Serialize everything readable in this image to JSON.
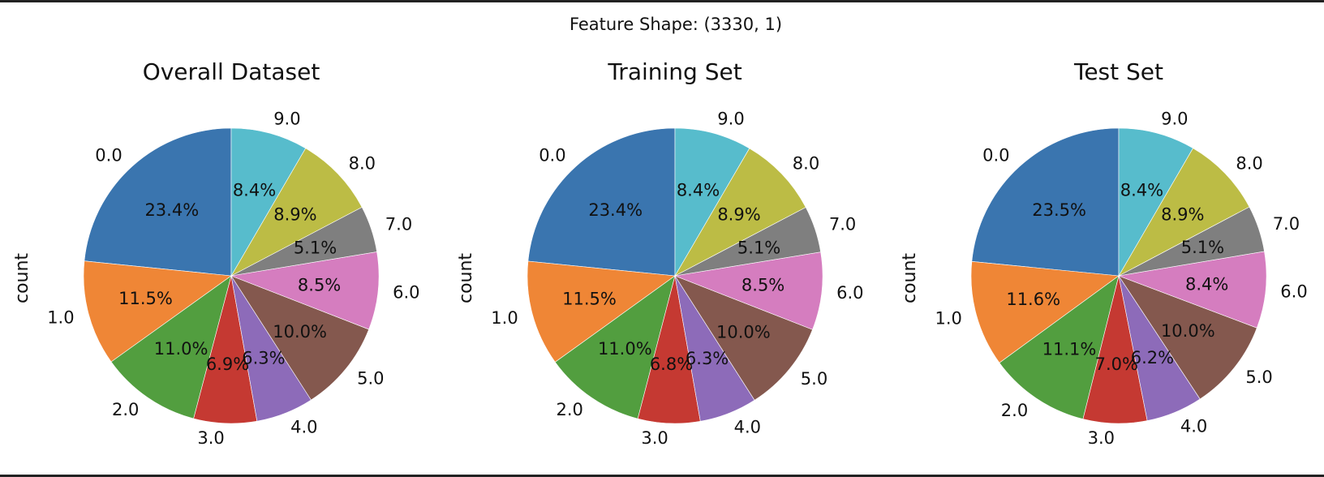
{
  "suptitle": "Feature Shape: (3330, 1)",
  "chart_data": [
    {
      "type": "pie",
      "title": "Overall Dataset",
      "ylabel": "count",
      "labels": [
        "0.0",
        "1.0",
        "2.0",
        "3.0",
        "4.0",
        "5.0",
        "6.0",
        "7.0",
        "8.0",
        "9.0"
      ],
      "values": [
        23.4,
        11.5,
        11.0,
        6.9,
        6.3,
        10.0,
        8.5,
        5.1,
        8.9,
        8.4
      ],
      "pct_labels": [
        "23.4%",
        "11.5%",
        "11.0%",
        "6.9%",
        "6.3%",
        "10.0%",
        "8.5%",
        "5.1%",
        "8.9%",
        "8.4%"
      ],
      "start_angle": 90,
      "direction": "counterclockwise",
      "colors": [
        "#3a75af",
        "#ef8636",
        "#529e3f",
        "#c53932",
        "#8d6bb9",
        "#84584e",
        "#d57dbf",
        "#7f7f7f",
        "#bcbc45",
        "#57bccc"
      ]
    },
    {
      "type": "pie",
      "title": "Training Set",
      "ylabel": "count",
      "labels": [
        "0.0",
        "1.0",
        "2.0",
        "3.0",
        "4.0",
        "5.0",
        "6.0",
        "7.0",
        "8.0",
        "9.0"
      ],
      "values": [
        23.4,
        11.5,
        11.0,
        6.8,
        6.3,
        10.0,
        8.5,
        5.1,
        8.9,
        8.4
      ],
      "pct_labels": [
        "23.4%",
        "11.5%",
        "11.0%",
        "6.8%",
        "6.3%",
        "10.0%",
        "8.5%",
        "5.1%",
        "8.9%",
        "8.4%"
      ],
      "start_angle": 90,
      "direction": "counterclockwise",
      "colors": [
        "#3a75af",
        "#ef8636",
        "#529e3f",
        "#c53932",
        "#8d6bb9",
        "#84584e",
        "#d57dbf",
        "#7f7f7f",
        "#bcbc45",
        "#57bccc"
      ]
    },
    {
      "type": "pie",
      "title": "Test Set",
      "ylabel": "count",
      "labels": [
        "0.0",
        "1.0",
        "2.0",
        "3.0",
        "4.0",
        "5.0",
        "6.0",
        "7.0",
        "8.0",
        "9.0"
      ],
      "values": [
        23.5,
        11.6,
        11.1,
        7.0,
        6.2,
        10.0,
        8.4,
        5.1,
        8.9,
        8.4
      ],
      "pct_labels": [
        "23.5%",
        "11.6%",
        "11.1%",
        "7.0%",
        "6.2%",
        "10.0%",
        "8.4%",
        "5.1%",
        "8.9%",
        "8.4%"
      ],
      "start_angle": 90,
      "direction": "counterclockwise",
      "colors": [
        "#3a75af",
        "#ef8636",
        "#529e3f",
        "#c53932",
        "#8d6bb9",
        "#84584e",
        "#d57dbf",
        "#7f7f7f",
        "#bcbc45",
        "#57bccc"
      ]
    }
  ]
}
